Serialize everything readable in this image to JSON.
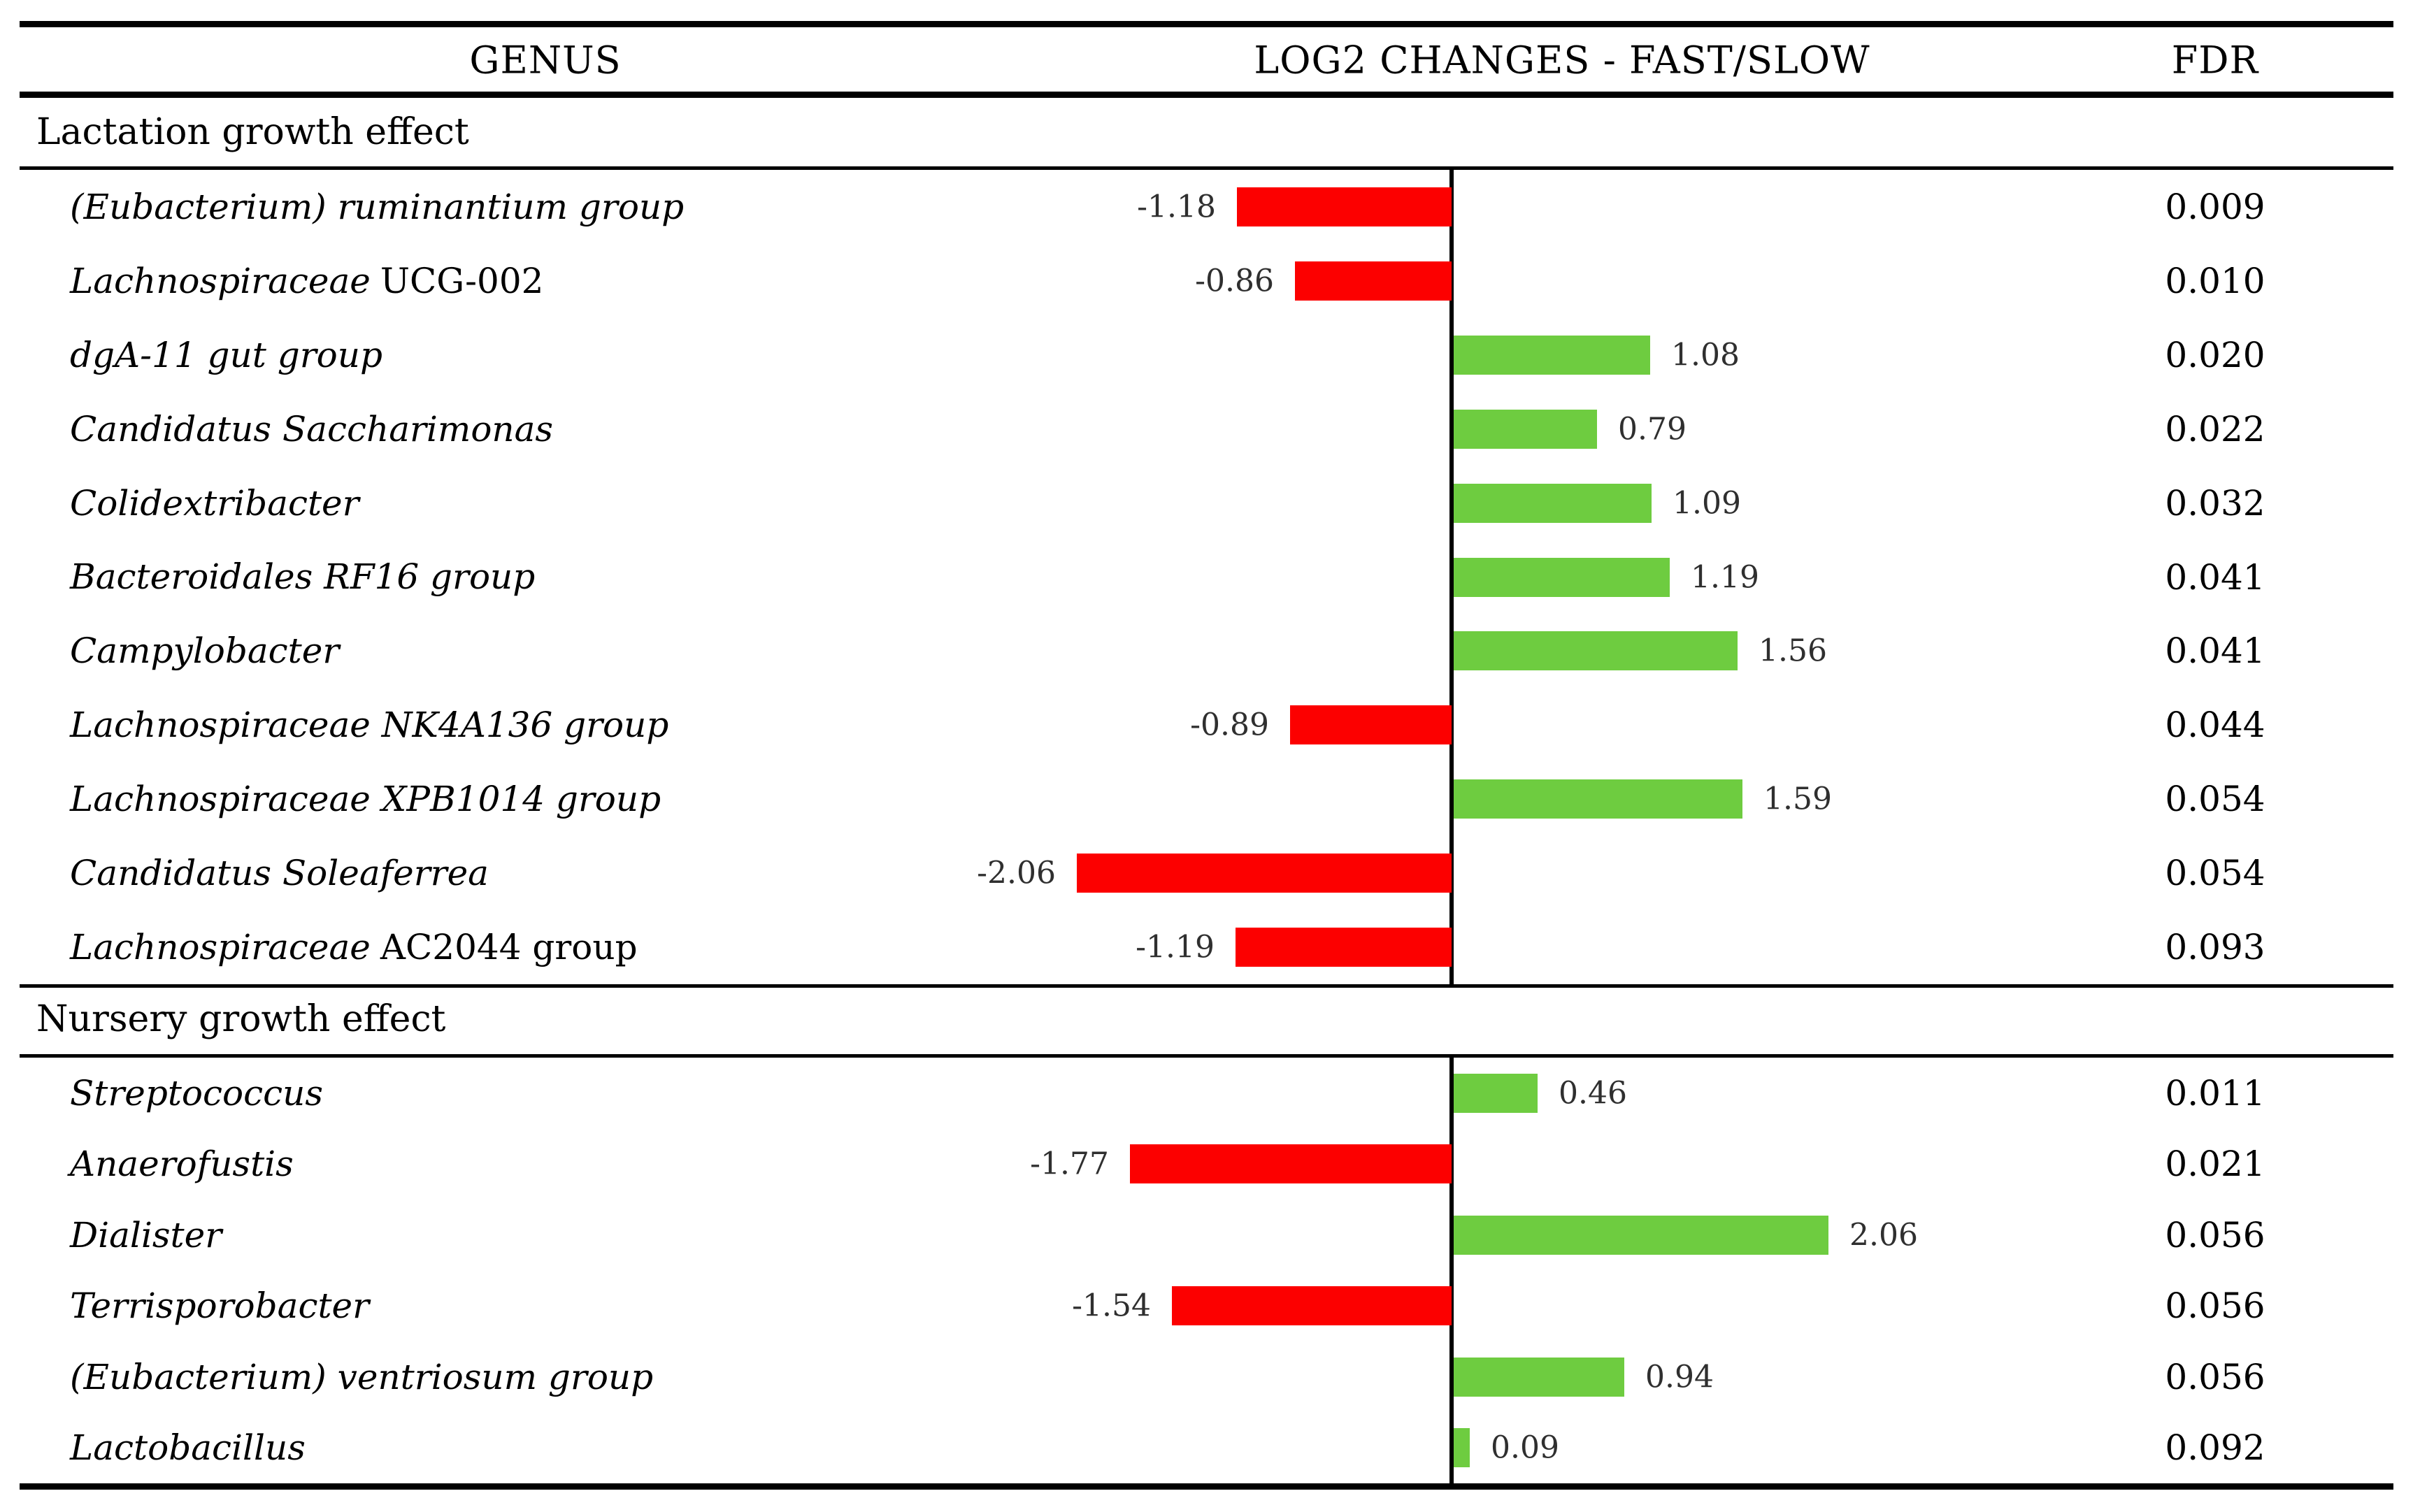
{
  "table": {
    "headers": {
      "genus": "GENUS",
      "log2": "LOG2 CHANGES - FAST/SLOW",
      "fdr": "FDR"
    },
    "colors": {
      "positive": "#6ECC40",
      "negative": "#FC0000",
      "rule": "#000000"
    },
    "sections": [
      {
        "title": "Lactation growth effect",
        "rows": [
          {
            "genus_italic": "(Eubacterium) ruminantium group",
            "genus_roman": "",
            "value": -1.18,
            "value_label": "-1.18",
            "fdr": "0.009"
          },
          {
            "genus_italic": "Lachnospiraceae",
            "genus_roman": "UCG-002",
            "value": -0.86,
            "value_label": "-0.86",
            "fdr": "0.010"
          },
          {
            "genus_italic": "dgA-11 gut group",
            "genus_roman": "",
            "value": 1.08,
            "value_label": "1.08",
            "fdr": "0.020"
          },
          {
            "genus_italic": "Candidatus Saccharimonas",
            "genus_roman": "",
            "value": 0.79,
            "value_label": "0.79",
            "fdr": "0.022"
          },
          {
            "genus_italic": "Colidextribacter",
            "genus_roman": "",
            "value": 1.09,
            "value_label": "1.09",
            "fdr": "0.032"
          },
          {
            "genus_italic": "Bacteroidales RF16 group",
            "genus_roman": "",
            "value": 1.19,
            "value_label": "1.19",
            "fdr": "0.041"
          },
          {
            "genus_italic": "Campylobacter",
            "genus_roman": "",
            "value": 1.56,
            "value_label": "1.56",
            "fdr": "0.041"
          },
          {
            "genus_italic": "Lachnospiraceae NK4A136 group",
            "genus_roman": "",
            "value": -0.89,
            "value_label": "-0.89",
            "fdr": "0.044"
          },
          {
            "genus_italic": "Lachnospiraceae XPB1014 group",
            "genus_roman": "",
            "value": 1.59,
            "value_label": "1.59",
            "fdr": "0.054"
          },
          {
            "genus_italic": "Candidatus Soleaferrea",
            "genus_roman": "",
            "value": -2.06,
            "value_label": "-2.06",
            "fdr": "0.054"
          },
          {
            "genus_italic": "Lachnospiraceae",
            "genus_roman": "AC2044 group",
            "value": -1.19,
            "value_label": "-1.19",
            "fdr": "0.093"
          }
        ]
      },
      {
        "title": "Nursery growth effect",
        "rows": [
          {
            "genus_italic": "Streptococcus",
            "genus_roman": "",
            "value": 0.46,
            "value_label": "0.46",
            "fdr": "0.011"
          },
          {
            "genus_italic": "Anaerofustis",
            "genus_roman": "",
            "value": -1.77,
            "value_label": "-1.77",
            "fdr": "0.021"
          },
          {
            "genus_italic": "Dialister",
            "genus_roman": "",
            "value": 2.06,
            "value_label": "2.06",
            "fdr": "0.056"
          },
          {
            "genus_italic": "Terrisporobacter",
            "genus_roman": "",
            "value": -1.54,
            "value_label": "-1.54",
            "fdr": "0.056"
          },
          {
            "genus_italic": "(Eubacterium) ventriosum group",
            "genus_roman": "",
            "value": 0.94,
            "value_label": "0.94",
            "fdr": "0.056"
          },
          {
            "genus_italic": "Lactobacillus",
            "genus_roman": "",
            "value": 0.09,
            "value_label": "0.09",
            "fdr": "0.092"
          }
        ]
      }
    ]
  },
  "chart_data": {
    "type": "bar",
    "orientation": "horizontal",
    "title": "LOG2 CHANGES - FAST/SLOW",
    "xlim": [
      -2.5,
      2.5
    ],
    "grid": false,
    "legend": "none",
    "positive_color": "#6ECC40",
    "negative_color": "#FC0000",
    "series": [
      {
        "name": "Lactation growth effect",
        "categories": [
          "(Eubacterium) ruminantium group",
          "Lachnospiraceae UCG-002",
          "dgA-11 gut group",
          "Candidatus Saccharimonas",
          "Colidextribacter",
          "Bacteroidales RF16 group",
          "Campylobacter",
          "Lachnospiraceae NK4A136 group",
          "Lachnospiraceae XPB1014 group",
          "Candidatus Soleaferrea",
          "Lachnospiraceae AC2044 group"
        ],
        "values": [
          -1.18,
          -0.86,
          1.08,
          0.79,
          1.09,
          1.19,
          1.56,
          -0.89,
          1.59,
          -2.06,
          -1.19
        ],
        "fdr": [
          0.009,
          0.01,
          0.02,
          0.022,
          0.032,
          0.041,
          0.041,
          0.044,
          0.054,
          0.054,
          0.093
        ]
      },
      {
        "name": "Nursery growth effect",
        "categories": [
          "Streptococcus",
          "Anaerofustis",
          "Dialister",
          "Terrisporobacter",
          "(Eubacterium) ventriosum group",
          "Lactobacillus"
        ],
        "values": [
          0.46,
          -1.77,
          2.06,
          -1.54,
          0.94,
          0.09
        ],
        "fdr": [
          0.011,
          0.021,
          0.056,
          0.056,
          0.056,
          0.092
        ]
      }
    ]
  }
}
